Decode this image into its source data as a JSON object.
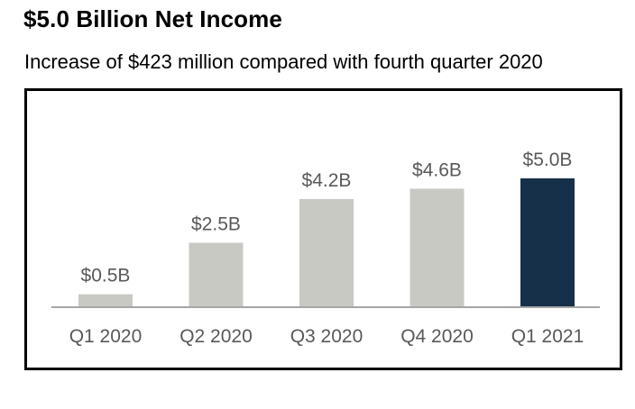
{
  "header": {
    "title": "$5.0 Billion Net Income",
    "subtitle": "Increase of $423 million compared with fourth quarter 2020"
  },
  "colors": {
    "bar_default": "#c9c9c4",
    "bar_highlight": "#17304a",
    "value_label": "#595959",
    "axis": "#a6a6a6"
  },
  "chart_data": {
    "type": "bar",
    "title": "",
    "xlabel": "",
    "ylabel": "",
    "categories": [
      "Q1 2020",
      "Q2 2020",
      "Q3 2020",
      "Q4 2020",
      "Q1 2021"
    ],
    "values": [
      0.5,
      2.5,
      4.2,
      4.6,
      5.0
    ],
    "value_labels": [
      "$0.5B",
      "$2.5B",
      "$4.2B",
      "$4.6B",
      "$5.0B"
    ],
    "unit": "$B",
    "highlight_index": 4,
    "ylim": [
      0,
      6.0
    ],
    "grid": false,
    "legend": "none"
  }
}
